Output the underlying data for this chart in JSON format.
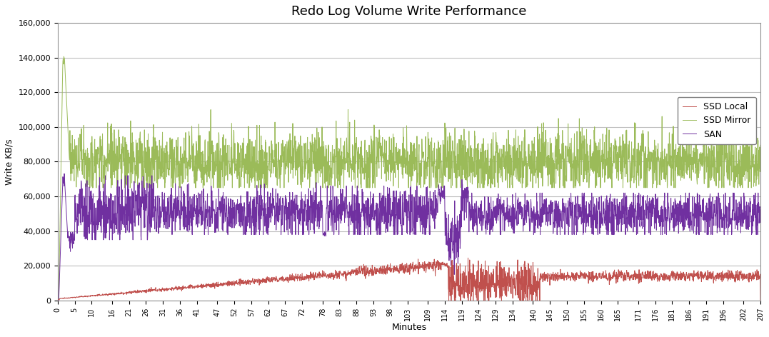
{
  "title": "Redo Log Volume Write Performance",
  "xlabel": "Minutes",
  "ylabel": "Write KB/s",
  "ylim": [
    0,
    160000
  ],
  "yticks": [
    0,
    20000,
    40000,
    60000,
    80000,
    100000,
    120000,
    140000,
    160000
  ],
  "ytick_labels": [
    "0",
    "20,000",
    "40,000",
    "60,000",
    "80,000",
    "100,000",
    "120,000",
    "140,000",
    "160,000"
  ],
  "xtick_positions": [
    0,
    5,
    10,
    16,
    21,
    26,
    31,
    36,
    41,
    47,
    52,
    57,
    62,
    67,
    72,
    78,
    83,
    88,
    93,
    98,
    103,
    109,
    114,
    119,
    124,
    129,
    134,
    140,
    145,
    150,
    155,
    160,
    165,
    171,
    176,
    181,
    186,
    191,
    196,
    202,
    207
  ],
  "colors": {
    "SAN": "#C0504D",
    "SSD_Local": "#9BBB59",
    "SSD_Mirror": "#7030A0"
  },
  "legend_labels": [
    "SAN",
    "SSD Local",
    "SSD Mirror"
  ],
  "background_color": "#FFFFFF",
  "grid_color": "#BEBEBE",
  "total_minutes": 207,
  "ssd_local_base": 80000,
  "ssd_local_noise_std": 10000,
  "ssd_mirror_base": 52000,
  "ssd_mirror_noise_std": 7000,
  "san_final_base": 14000,
  "san_noise_std": 1200
}
